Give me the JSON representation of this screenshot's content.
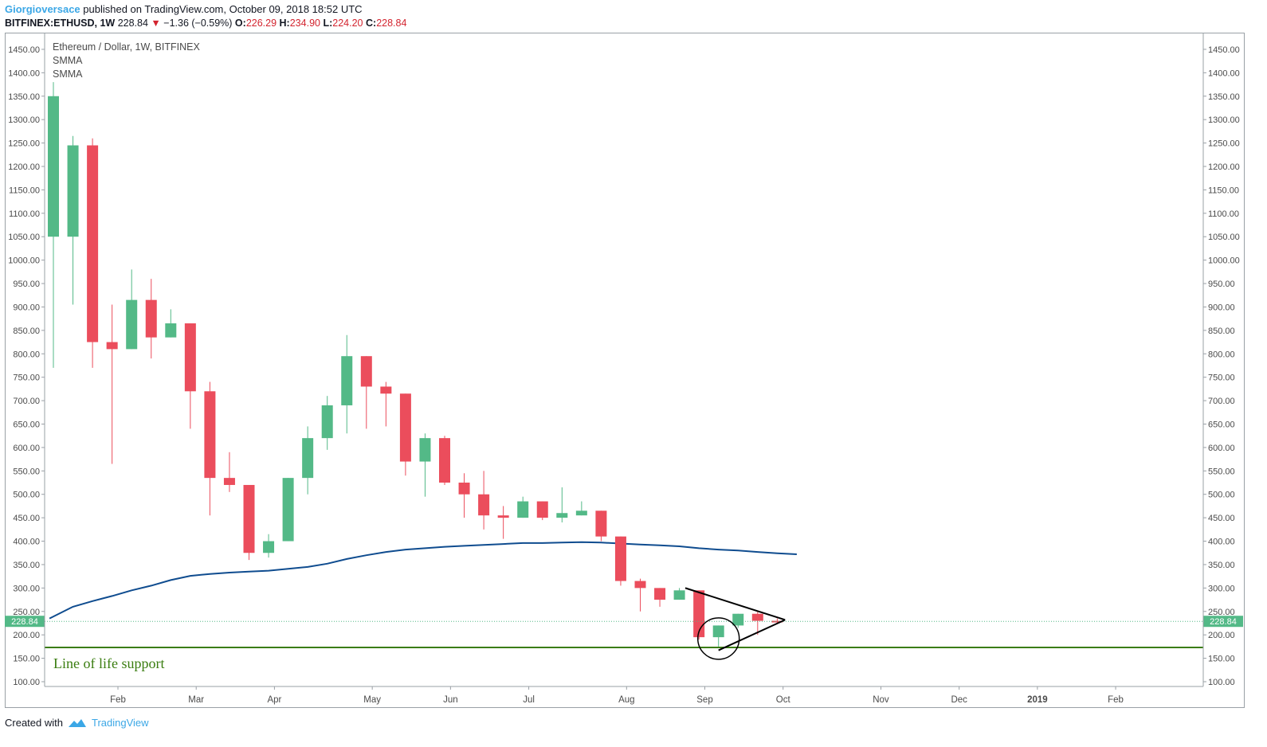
{
  "header": {
    "user": "Giorgioversace",
    "published_text": "published on TradingView.com, October 09, 2018 18:52 UTC"
  },
  "ohlc": {
    "symbol": "BITFINEX:ETHUSD, 1W",
    "price": "228.84",
    "arrow": "▼",
    "change": "−1.36 (−0.59%)",
    "o_label": "O:",
    "o": "226.29",
    "h_label": "H:",
    "h": "234.90",
    "l_label": "L:",
    "l": "224.20",
    "c_label": "C:",
    "c": "228.84"
  },
  "legend": {
    "title": "Ethereum / Dollar, 1W, BITFINEX",
    "ind1": "SMMA",
    "ind2": "SMMA"
  },
  "footer": {
    "created_with": "Created with",
    "brand": "TradingView"
  },
  "colors": {
    "up": "#53b987",
    "down": "#eb4d5c",
    "smma": "#0f4c8f",
    "support": "#3a7d10",
    "pattern": "#000000",
    "axis_text": "#4a4a4a",
    "price_tag": "#53b987"
  },
  "chart_data": {
    "type": "candlestick",
    "title": "Ethereum / Dollar, 1W, BITFINEX",
    "ylim": [
      100,
      1480
    ],
    "yticks": [
      "1450.00",
      "1400.00",
      "1350.00",
      "1300.00",
      "1250.00",
      "1200.00",
      "1150.00",
      "1100.00",
      "1050.00",
      "1000.00",
      "950.00",
      "900.00",
      "850.00",
      "800.00",
      "750.00",
      "700.00",
      "650.00",
      "600.00",
      "550.00",
      "500.00",
      "450.00",
      "400.00",
      "350.00",
      "300.00",
      "250.00",
      "200.00",
      "150.00",
      "100.00"
    ],
    "ytick_values": [
      1450,
      1400,
      1350,
      1300,
      1250,
      1200,
      1150,
      1100,
      1050,
      1000,
      950,
      900,
      850,
      800,
      750,
      700,
      650,
      600,
      550,
      500,
      450,
      400,
      350,
      300,
      250,
      200,
      150,
      100
    ],
    "xticks": [
      "Feb",
      "Mar",
      "Apr",
      "May",
      "Jun",
      "Jul",
      "Aug",
      "Sep",
      "Oct",
      "Nov",
      "Dec",
      "2019",
      "Feb"
    ],
    "xtick_week_index": [
      3.3,
      7.3,
      11.3,
      16.3,
      20.3,
      24.3,
      29.3,
      33.3,
      37.3,
      42.3,
      46.3,
      50.3,
      54.3
    ],
    "bold_ticks": [
      "2019"
    ],
    "candles": [
      {
        "o": 1050,
        "h": 1380,
        "l": 770,
        "c": 1350
      },
      {
        "o": 1050,
        "h": 1265,
        "l": 905,
        "c": 1245
      },
      {
        "o": 1245,
        "h": 1260,
        "l": 770,
        "c": 825
      },
      {
        "o": 825,
        "h": 905,
        "l": 565,
        "c": 810
      },
      {
        "o": 810,
        "h": 980,
        "l": 810,
        "c": 915
      },
      {
        "o": 915,
        "h": 960,
        "l": 790,
        "c": 835
      },
      {
        "o": 835,
        "h": 895,
        "l": 835,
        "c": 865
      },
      {
        "o": 865,
        "h": 865,
        "l": 640,
        "c": 720
      },
      {
        "o": 720,
        "h": 740,
        "l": 455,
        "c": 535
      },
      {
        "o": 535,
        "h": 590,
        "l": 505,
        "c": 520
      },
      {
        "o": 520,
        "h": 520,
        "l": 360,
        "c": 375
      },
      {
        "o": 375,
        "h": 415,
        "l": 365,
        "c": 400
      },
      {
        "o": 400,
        "h": 535,
        "l": 400,
        "c": 535
      },
      {
        "o": 535,
        "h": 645,
        "l": 500,
        "c": 620
      },
      {
        "o": 620,
        "h": 710,
        "l": 595,
        "c": 690
      },
      {
        "o": 690,
        "h": 840,
        "l": 630,
        "c": 795
      },
      {
        "o": 795,
        "h": 795,
        "l": 640,
        "c": 730
      },
      {
        "o": 730,
        "h": 740,
        "l": 645,
        "c": 715
      },
      {
        "o": 715,
        "h": 715,
        "l": 540,
        "c": 570
      },
      {
        "o": 570,
        "h": 630,
        "l": 495,
        "c": 620
      },
      {
        "o": 620,
        "h": 625,
        "l": 520,
        "c": 525
      },
      {
        "o": 525,
        "h": 545,
        "l": 450,
        "c": 500
      },
      {
        "o": 500,
        "h": 550,
        "l": 425,
        "c": 455
      },
      {
        "o": 455,
        "h": 475,
        "l": 405,
        "c": 450
      },
      {
        "o": 450,
        "h": 495,
        "l": 450,
        "c": 485
      },
      {
        "o": 485,
        "h": 485,
        "l": 445,
        "c": 450
      },
      {
        "o": 450,
        "h": 515,
        "l": 440,
        "c": 460
      },
      {
        "o": 455,
        "h": 485,
        "l": 455,
        "c": 465
      },
      {
        "o": 465,
        "h": 465,
        "l": 400,
        "c": 410
      },
      {
        "o": 410,
        "h": 410,
        "l": 305,
        "c": 315
      },
      {
        "o": 315,
        "h": 320,
        "l": 250,
        "c": 300
      },
      {
        "o": 300,
        "h": 300,
        "l": 260,
        "c": 275
      },
      {
        "o": 275,
        "h": 300,
        "l": 275,
        "c": 295
      },
      {
        "o": 295,
        "h": 295,
        "l": 190,
        "c": 195
      },
      {
        "o": 195,
        "h": 220,
        "l": 175,
        "c": 220
      },
      {
        "o": 220,
        "h": 245,
        "l": 215,
        "c": 245
      },
      {
        "o": 245,
        "h": 250,
        "l": 200,
        "c": 230
      },
      {
        "o": 230,
        "h": 235,
        "l": 224,
        "c": 229
      }
    ],
    "smma": [
      {
        "i": -0.2,
        "v": 235
      },
      {
        "i": 1,
        "v": 260
      },
      {
        "i": 2,
        "v": 272
      },
      {
        "i": 3,
        "v": 283
      },
      {
        "i": 4,
        "v": 295
      },
      {
        "i": 5,
        "v": 305
      },
      {
        "i": 6,
        "v": 317
      },
      {
        "i": 7,
        "v": 326
      },
      {
        "i": 8,
        "v": 330
      },
      {
        "i": 9,
        "v": 333
      },
      {
        "i": 10,
        "v": 335
      },
      {
        "i": 11,
        "v": 337
      },
      {
        "i": 12,
        "v": 341
      },
      {
        "i": 13,
        "v": 345
      },
      {
        "i": 14,
        "v": 352
      },
      {
        "i": 15,
        "v": 362
      },
      {
        "i": 16,
        "v": 370
      },
      {
        "i": 17,
        "v": 377
      },
      {
        "i": 18,
        "v": 382
      },
      {
        "i": 19,
        "v": 385
      },
      {
        "i": 20,
        "v": 388
      },
      {
        "i": 21,
        "v": 390
      },
      {
        "i": 22,
        "v": 392
      },
      {
        "i": 23,
        "v": 394
      },
      {
        "i": 24,
        "v": 396
      },
      {
        "i": 25,
        "v": 396
      },
      {
        "i": 26,
        "v": 397
      },
      {
        "i": 27,
        "v": 398
      },
      {
        "i": 28,
        "v": 397
      },
      {
        "i": 29,
        "v": 395
      },
      {
        "i": 30,
        "v": 393
      },
      {
        "i": 31,
        "v": 391
      },
      {
        "i": 32,
        "v": 389
      },
      {
        "i": 33,
        "v": 385
      },
      {
        "i": 34,
        "v": 382
      },
      {
        "i": 35,
        "v": 380
      },
      {
        "i": 36,
        "v": 377
      },
      {
        "i": 37,
        "v": 374
      },
      {
        "i": 38,
        "v": 372
      }
    ],
    "last_price": 228.84,
    "last_price_label": "228.84",
    "support": {
      "value": 173,
      "label": "Line of life support"
    },
    "pattern_lines": [
      {
        "i1": 32.3,
        "v1": 300,
        "i2": 37.4,
        "v2": 232
      },
      {
        "i1": 34,
        "v1": 167,
        "i2": 37.4,
        "v2": 232
      }
    ],
    "circle": {
      "i": 34,
      "v": 192
    }
  }
}
